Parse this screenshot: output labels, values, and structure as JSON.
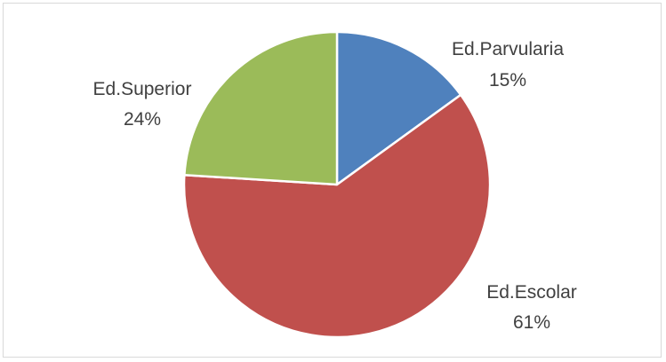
{
  "chart_data": {
    "type": "pie",
    "slices": [
      {
        "label": "Ed.Parvularia",
        "value": 15,
        "value_label": "15%",
        "color": "#4f81bd"
      },
      {
        "label": "Ed.Escolar",
        "value": 61,
        "value_label": "61%",
        "color": "#c0504d"
      },
      {
        "label": "Ed.Superior",
        "value": 24,
        "value_label": "24%",
        "color": "#9bbb59"
      }
    ],
    "start_angle_deg": 0,
    "direction": "clockwise",
    "legend": "none"
  }
}
